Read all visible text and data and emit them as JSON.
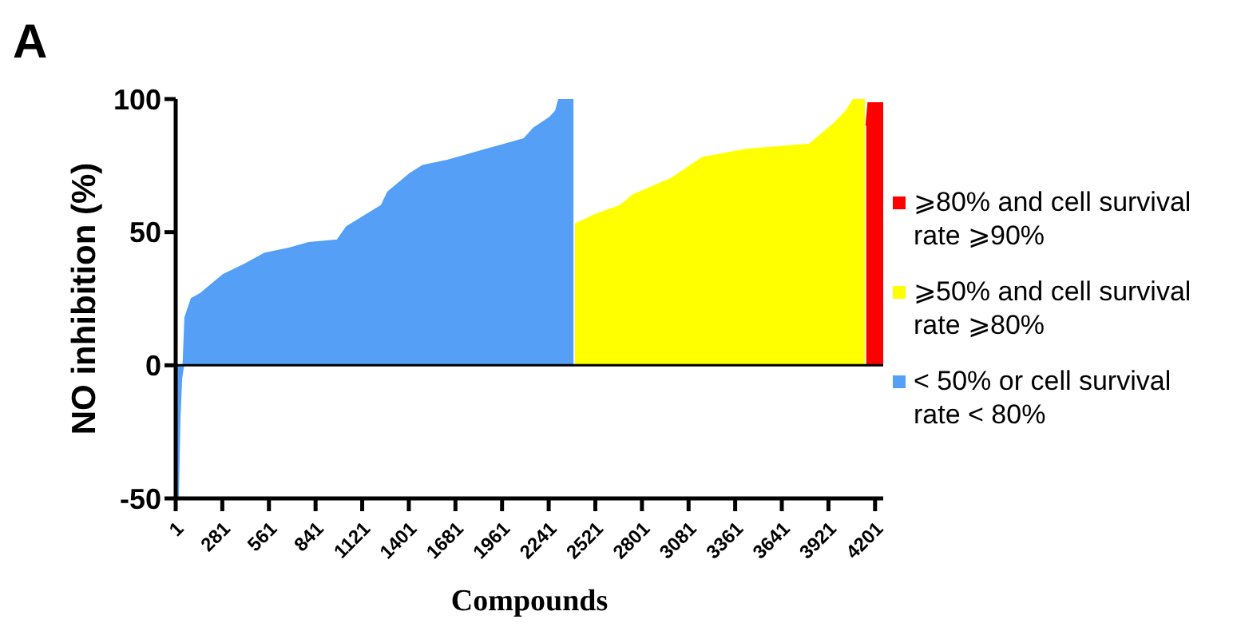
{
  "chart_data": {
    "type": "area",
    "title": "A",
    "xlabel": "Compounds",
    "ylabel": "NO inhibition (%)",
    "xlim": [
      1,
      4250
    ],
    "xticks": [
      1,
      281,
      561,
      841,
      1121,
      1401,
      1681,
      1961,
      2241,
      2521,
      2801,
      3081,
      3361,
      3641,
      3921,
      4201
    ],
    "ylim": [
      -50,
      100
    ],
    "yticks": [
      -50,
      0,
      50,
      100
    ],
    "grid": false,
    "legend": "right",
    "ref_lines": [
      {
        "axis": "y",
        "value": 0
      }
    ],
    "series": [
      {
        "name": "< 50% or cell survival rate < 80%",
        "color": "#559ff6",
        "x": [
          1,
          15,
          25,
          35,
          47,
          58,
          96,
          153,
          286,
          419,
          534,
          686,
          800,
          972,
          1028,
          1237,
          1275,
          1409,
          1485,
          1637,
          1865,
          1979,
          2093,
          2150,
          2246,
          2284,
          2303,
          2390
        ],
        "values": [
          -50,
          -50,
          -20,
          -5,
          0,
          18,
          25,
          27,
          34,
          38,
          42,
          44,
          46,
          47,
          52,
          60,
          65,
          72,
          75,
          77,
          81,
          83,
          85,
          89,
          93,
          95.5,
          100,
          100
        ]
      },
      {
        "name": "⩾50% and cell survival rate ⩾80%",
        "color": "#ffff00",
        "x": [
          2399,
          2521,
          2672,
          2748,
          2975,
          3164,
          3428,
          3807,
          3883,
          3959,
          4034,
          4072,
          4140
        ],
        "values": [
          53,
          56.5,
          60,
          64,
          70,
          78,
          81,
          83,
          87,
          91,
          96,
          100,
          100
        ]
      },
      {
        "name": "⩾80% and cell survival rate ⩾90%",
        "color": "#ff0000",
        "x": [
          4148,
          4160,
          4250
        ],
        "values": [
          90,
          98.5,
          98.5
        ]
      }
    ]
  }
}
